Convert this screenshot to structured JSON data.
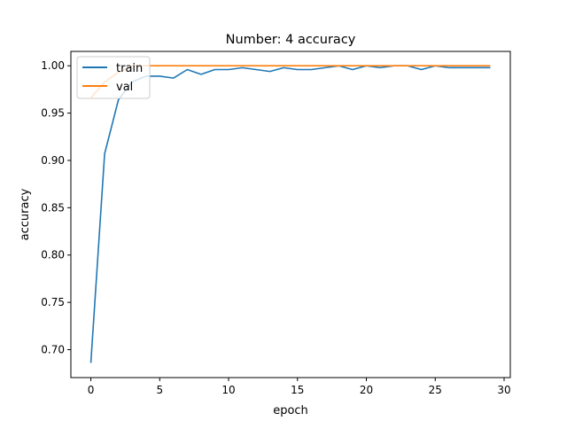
{
  "chart_data": {
    "type": "line",
    "title": "Number: 4 accuracy",
    "xlabel": "epoch",
    "ylabel": "accuracy",
    "xlim": [
      -1.45,
      30.45
    ],
    "ylim": [
      0.6705,
      1.0152
    ],
    "xticks": [
      0,
      5,
      10,
      15,
      20,
      25,
      30
    ],
    "yticks": [
      0.7,
      0.75,
      0.8,
      0.85,
      0.9,
      0.95,
      1.0
    ],
    "ytick_labels": [
      "0.70",
      "0.75",
      "0.80",
      "0.85",
      "0.90",
      "0.95",
      "1.00"
    ],
    "legend": {
      "position": "top-left"
    },
    "grid": false,
    "x": [
      0,
      1,
      2,
      3,
      4,
      5,
      6,
      7,
      8,
      9,
      10,
      11,
      12,
      13,
      14,
      15,
      16,
      17,
      18,
      19,
      20,
      21,
      22,
      23,
      24,
      25,
      26,
      27,
      28,
      29
    ],
    "series": [
      {
        "name": "train",
        "color": "#1f77b4",
        "values": [
          0.686,
          0.907,
          0.964,
          0.983,
          0.989,
          0.989,
          0.987,
          0.996,
          0.991,
          0.996,
          0.996,
          0.998,
          0.996,
          0.994,
          0.998,
          0.996,
          0.996,
          0.998,
          1.0,
          0.996,
          1.0,
          0.998,
          1.0,
          1.0,
          0.996,
          1.0,
          0.998,
          0.998,
          0.998,
          0.998
        ]
      },
      {
        "name": "val",
        "color": "#ff7f0e",
        "values": [
          0.966,
          0.983,
          0.993,
          1.0,
          1.0,
          1.0,
          1.0,
          1.0,
          1.0,
          1.0,
          1.0,
          1.0,
          1.0,
          1.0,
          1.0,
          1.0,
          1.0,
          1.0,
          1.0,
          1.0,
          1.0,
          1.0,
          1.0,
          1.0,
          1.0,
          1.0,
          1.0,
          1.0,
          1.0,
          1.0
        ]
      }
    ]
  }
}
